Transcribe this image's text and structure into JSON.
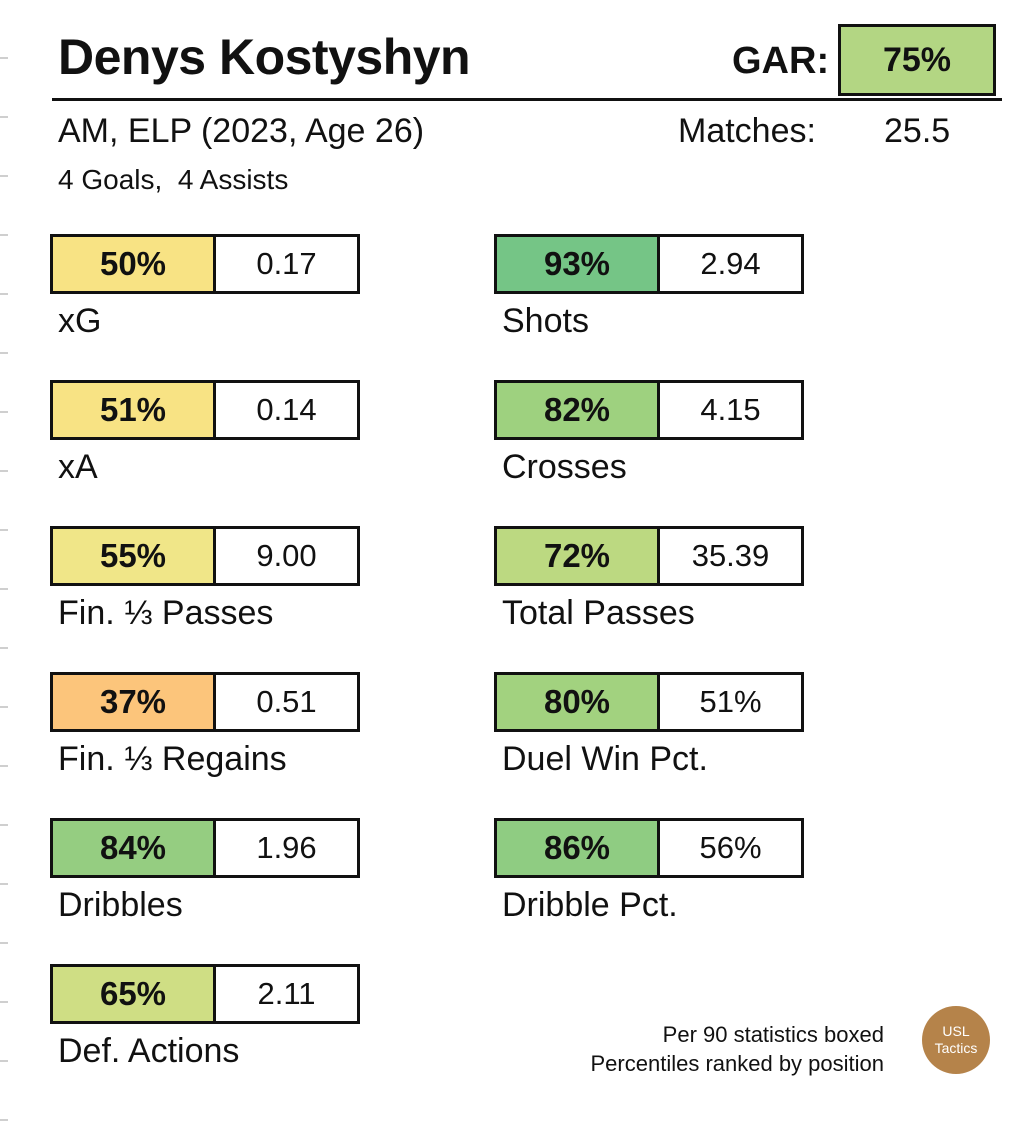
{
  "header": {
    "player_name": "Denys Kostyshyn",
    "gar_label": "GAR:",
    "gar_value": "75%",
    "gar_color": "#b3d683",
    "subtitle": "AM, ELP (2023, Age 26)",
    "matches_label": "Matches:",
    "matches_value": "25.5",
    "goals_assists": "4 Goals,  4 Assists"
  },
  "stats": [
    {
      "label": "xG",
      "percentile": "50%",
      "value": "0.17",
      "color": "#f8e384"
    },
    {
      "label": "Shots",
      "percentile": "93%",
      "value": "2.94",
      "color": "#75c586"
    },
    {
      "label": "xA",
      "percentile": "51%",
      "value": "0.14",
      "color": "#f8e384"
    },
    {
      "label": "Crosses",
      "percentile": "82%",
      "value": "4.15",
      "color": "#9ed17f"
    },
    {
      "label": "Fin. ⅓ Passes",
      "percentile": "55%",
      "value": "9.00",
      "color": "#f0e688"
    },
    {
      "label": "Total Passes",
      "percentile": "72%",
      "value": "35.39",
      "color": "#bcd981"
    },
    {
      "label": "Fin. ⅓ Regains",
      "percentile": "37%",
      "value": "0.51",
      "color": "#fcc57b"
    },
    {
      "label": "Duel Win Pct.",
      "percentile": "80%",
      "value": "51%",
      "color": "#a2d27f"
    },
    {
      "label": "Dribbles",
      "percentile": "84%",
      "value": "1.96",
      "color": "#95cd81"
    },
    {
      "label": "Dribble Pct.",
      "percentile": "86%",
      "value": "56%",
      "color": "#8fcc82"
    },
    {
      "label": "Def. Actions",
      "percentile": "65%",
      "value": "2.11",
      "color": "#cfde84"
    }
  ],
  "footer": {
    "note_line1": "Per 90 statistics boxed",
    "note_line2": "Percentiles ranked by position",
    "logo_line1": "USL",
    "logo_line2": "Tactics",
    "logo_color": "#b5834a"
  }
}
